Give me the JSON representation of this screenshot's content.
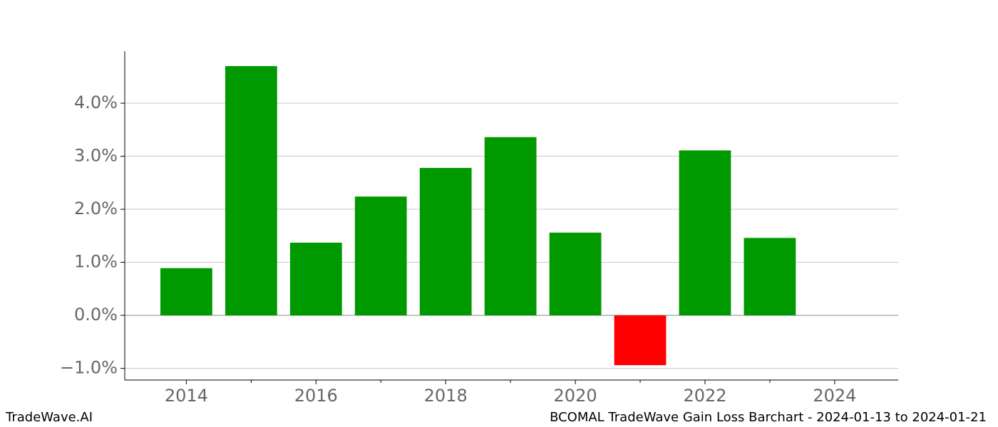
{
  "chart_data": {
    "type": "bar",
    "title": "BCOMAL TradeWave Gain Loss Barchart - 2024-01-13 to 2024-01-21",
    "source": "TradeWave.AI",
    "x": [
      2014,
      2015,
      2016,
      2017,
      2018,
      2019,
      2020,
      2021,
      2022,
      2023
    ],
    "values": [
      0.89,
      4.7,
      1.37,
      2.24,
      2.78,
      3.36,
      1.56,
      -0.94,
      3.11,
      1.46
    ],
    "positive_color": "#009900",
    "negative_color": "#ff0000",
    "bar_width": 0.8,
    "xlim": [
      2013.05,
      2024.98
    ],
    "xticks": [
      2014,
      2016,
      2018,
      2020,
      2022,
      2024
    ],
    "xminorticks": [
      2015,
      2017,
      2019,
      2021,
      2023
    ],
    "ylim": [
      -1.22,
      4.98
    ],
    "yticks": [
      {
        "value": -1,
        "label": "−1.0%"
      },
      {
        "value": 0,
        "label": "0.0%"
      },
      {
        "value": 1,
        "label": "1.0%"
      },
      {
        "value": 2,
        "label": "2.0%"
      },
      {
        "value": 3,
        "label": "3.0%"
      },
      {
        "value": 4,
        "label": "4.0%"
      }
    ],
    "grid": true
  }
}
